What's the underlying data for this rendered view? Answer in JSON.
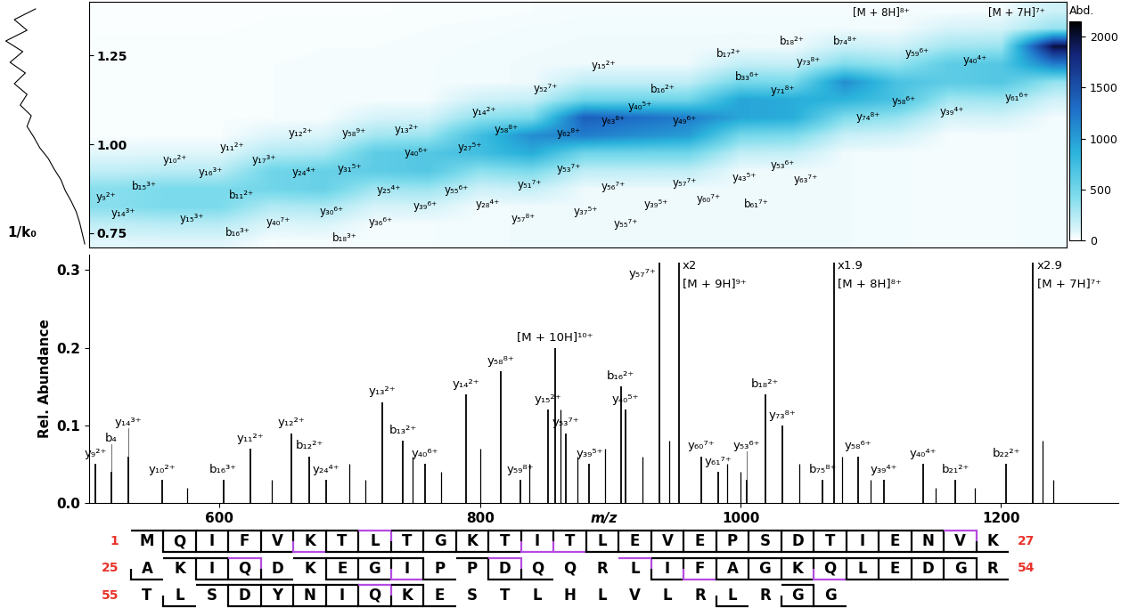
{
  "chart_data": [
    {
      "type": "heatmap",
      "ylabel": "1/k₀",
      "xlim": [
        500,
        1250
      ],
      "ylim": [
        0.71,
        1.4
      ],
      "yticks": [
        {
          "value": 0.75,
          "label": "0.75"
        },
        {
          "value": 1.0,
          "label": "1.00"
        },
        {
          "value": 1.25,
          "label": "1.25"
        }
      ],
      "tick_labels": "y",
      "x_bins": [
        500,
        540,
        580,
        620,
        660,
        700,
        740,
        780,
        820,
        860,
        900,
        940,
        980,
        1020,
        1060,
        1100,
        1140,
        1180,
        1220,
        1260
      ],
      "y_bins": [
        0.7,
        0.75,
        0.8,
        0.85,
        0.9,
        0.95,
        1.0,
        1.05,
        1.1,
        1.15,
        1.2,
        1.25,
        1.3,
        1.35,
        1.4
      ],
      "cells": [
        [
          80,
          90,
          90,
          25,
          28,
          30,
          33,
          38,
          45,
          50,
          50,
          50,
          48,
          45,
          43,
          35,
          30,
          33,
          35
        ],
        [
          200,
          225,
          225,
          100,
          110,
          30,
          33,
          38,
          45,
          50,
          50,
          50,
          48,
          45,
          43,
          35,
          30,
          33,
          35
        ],
        [
          400,
          450,
          450,
          250,
          275,
          120,
          130,
          38,
          45,
          50,
          50,
          50,
          48,
          45,
          43,
          35,
          30,
          33,
          35
        ],
        [
          400,
          450,
          450,
          500,
          550,
          300,
          325,
          150,
          180,
          50,
          50,
          50,
          48,
          45,
          43,
          35,
          30,
          33,
          35
        ],
        [
          200,
          225,
          225,
          500,
          550,
          600,
          650,
          375,
          450,
          200,
          200,
          200,
          48,
          45,
          43,
          35,
          30,
          33,
          35
        ],
        [
          80,
          90,
          90,
          250,
          275,
          600,
          650,
          750,
          900,
          500,
          500,
          500,
          190,
          180,
          43,
          35,
          30,
          33,
          35
        ],
        [
          20,
          23,
          23,
          100,
          110,
          300,
          325,
          750,
          1100,
          1200,
          1100,
          1000,
          475,
          450,
          170,
          140,
          30,
          33,
          35
        ],
        [
          20,
          23,
          23,
          25,
          28,
          120,
          130,
          375,
          450,
          1400,
          1300,
          1200,
          950,
          900,
          425,
          350,
          120,
          130,
          35
        ],
        [
          20,
          23,
          23,
          25,
          28,
          30,
          33,
          150,
          180,
          500,
          500,
          500,
          950,
          900,
          850,
          700,
          300,
          325,
          140
        ],
        [
          20,
          23,
          23,
          25,
          28,
          30,
          33,
          38,
          45,
          200,
          200,
          200,
          475,
          450,
          1100,
          700,
          600,
          650,
          350
        ],
        [
          20,
          23,
          23,
          25,
          28,
          30,
          33,
          38,
          45,
          50,
          50,
          50,
          190,
          180,
          425,
          350,
          600,
          650,
          1200
        ],
        [
          20,
          20,
          20,
          20,
          25,
          25,
          30,
          35,
          40,
          45,
          45,
          45,
          48,
          45,
          170,
          140,
          300,
          325,
          2000
        ],
        [
          15,
          15,
          15,
          20,
          20,
          20,
          25,
          30,
          35,
          40,
          40,
          40,
          40,
          40,
          43,
          35,
          120,
          130,
          350
        ],
        [
          10,
          10,
          10,
          15,
          15,
          15,
          20,
          20,
          25,
          30,
          30,
          30,
          30,
          30,
          30,
          30,
          30,
          35,
          150
        ]
      ],
      "colorbar": {
        "label": "Abd.",
        "range": [
          0,
          2150
        ],
        "ticks": [
          0,
          500,
          1000,
          1500,
          2000
        ]
      },
      "mobilogram": {
        "k0": [
          0.72,
          0.75,
          0.78,
          0.81,
          0.84,
          0.87,
          0.9,
          0.93,
          0.96,
          0.99,
          1.02,
          1.05,
          1.08,
          1.11,
          1.14,
          1.17,
          1.2,
          1.23,
          1.26,
          1.29,
          1.32,
          1.35,
          1.38
        ],
        "values": [
          0.02,
          0.05,
          0.08,
          0.12,
          0.18,
          0.25,
          0.3,
          0.38,
          0.45,
          0.55,
          0.62,
          0.7,
          0.65,
          0.78,
          0.7,
          0.85,
          0.72,
          0.9,
          0.75,
          0.95,
          0.7,
          0.85,
          0.6
        ]
      },
      "annotations": [
        {
          "text": "y₉²⁺",
          "x": 513,
          "y": 0.85
        },
        {
          "text": "b₁₅³⁺",
          "x": 542,
          "y": 0.88
        },
        {
          "text": "y₁₄³⁺",
          "x": 526,
          "y": 0.805
        },
        {
          "text": "y₁₀²⁺",
          "x": 566,
          "y": 0.955
        },
        {
          "text": "y₁₆³⁺",
          "x": 593,
          "y": 0.92
        },
        {
          "text": "y₁₁²⁺",
          "x": 610,
          "y": 0.99
        },
        {
          "text": "y₁₇³⁺",
          "x": 634,
          "y": 0.955
        },
        {
          "text": "y₁₂²⁺",
          "x": 662,
          "y": 1.03
        },
        {
          "text": "y₅₈⁹⁺",
          "x": 703,
          "y": 1.03
        },
        {
          "text": "y₁₃²⁺",
          "x": 744,
          "y": 1.04
        },
        {
          "text": "y₄₀⁶⁺",
          "x": 751,
          "y": 0.975
        },
        {
          "text": "y₂₇⁵⁺",
          "x": 792,
          "y": 0.99
        },
        {
          "text": "y₂₄⁴⁺",
          "x": 665,
          "y": 0.92
        },
        {
          "text": "y₃₁⁵⁺",
          "x": 700,
          "y": 0.93
        },
        {
          "text": "y₂₅⁴⁺",
          "x": 730,
          "y": 0.87
        },
        {
          "text": "b₁₁²⁺",
          "x": 617,
          "y": 0.855
        },
        {
          "text": "y₁₅³⁺",
          "x": 579,
          "y": 0.79
        },
        {
          "text": "b₁₆³⁺",
          "x": 614,
          "y": 0.75
        },
        {
          "text": "y₄₀⁷⁺",
          "x": 645,
          "y": 0.78
        },
        {
          "text": "y₃₀⁶⁺",
          "x": 686,
          "y": 0.81
        },
        {
          "text": "y₃₆⁶⁺",
          "x": 724,
          "y": 0.78
        },
        {
          "text": "b₁₈³⁺",
          "x": 696,
          "y": 0.735
        },
        {
          "text": "y₃₉⁶⁺",
          "x": 758,
          "y": 0.825
        },
        {
          "text": "y₅₅⁶⁺",
          "x": 782,
          "y": 0.87
        },
        {
          "text": "y₂₈⁴⁺",
          "x": 806,
          "y": 0.83
        },
        {
          "text": "y₅₇⁸⁺",
          "x": 833,
          "y": 0.79
        },
        {
          "text": "y₃₇⁵⁺",
          "x": 881,
          "y": 0.81
        },
        {
          "text": "y₅₅⁷⁺",
          "x": 912,
          "y": 0.775
        },
        {
          "text": "y₁₄²⁺",
          "x": 803,
          "y": 1.09
        },
        {
          "text": "y₅₈⁸⁺",
          "x": 820,
          "y": 1.04
        },
        {
          "text": "y₅₂⁷⁺",
          "x": 850,
          "y": 1.155
        },
        {
          "text": "y₁₅²⁺",
          "x": 895,
          "y": 1.22
        },
        {
          "text": "y₆₂⁸⁺",
          "x": 868,
          "y": 1.03
        },
        {
          "text": "y₆₃⁸⁺",
          "x": 902,
          "y": 1.065
        },
        {
          "text": "y₅₃⁷⁺",
          "x": 868,
          "y": 0.93
        },
        {
          "text": "y₅₁⁷⁺",
          "x": 838,
          "y": 0.885
        },
        {
          "text": "y₅₆⁷⁺",
          "x": 902,
          "y": 0.88
        },
        {
          "text": "y₃₉⁵⁺",
          "x": 935,
          "y": 0.83
        },
        {
          "text": "y₅₇⁷⁺",
          "x": 957,
          "y": 0.89
        },
        {
          "text": "y₆₀⁷⁺",
          "x": 975,
          "y": 0.845
        },
        {
          "text": "y₄₃⁵⁺",
          "x": 1003,
          "y": 0.905
        },
        {
          "text": "y₅₃⁶⁺",
          "x": 1032,
          "y": 0.94
        },
        {
          "text": "y₆₃⁷⁺",
          "x": 1050,
          "y": 0.9
        },
        {
          "text": "b₆₁⁷⁺",
          "x": 1012,
          "y": 0.83
        },
        {
          "text": "y₄₀⁵⁺",
          "x": 923,
          "y": 1.105
        },
        {
          "text": "y₄₉⁶⁺",
          "x": 957,
          "y": 1.065
        },
        {
          "text": "b₁₆²⁺",
          "x": 940,
          "y": 1.155
        },
        {
          "text": "b₁₇²⁺",
          "x": 991,
          "y": 1.255
        },
        {
          "text": "b₃₃⁶⁺",
          "x": 1005,
          "y": 1.19
        },
        {
          "text": "y₇₁⁸⁺",
          "x": 1032,
          "y": 1.15
        },
        {
          "text": "b₁₈²⁺",
          "x": 1039,
          "y": 1.29
        },
        {
          "text": "y₇₃⁸⁺",
          "x": 1052,
          "y": 1.23
        },
        {
          "text": "b₇₄⁸⁺",
          "x": 1080,
          "y": 1.29
        },
        {
          "text": "[M + 8H]⁸⁺",
          "x": 1108,
          "y": 1.37
        },
        {
          "text": "[M + 7H]⁷⁺",
          "x": 1212,
          "y": 1.37
        },
        {
          "text": "y₅₉⁶⁺",
          "x": 1135,
          "y": 1.255
        },
        {
          "text": "y₄₀⁴⁺",
          "x": 1180,
          "y": 1.235
        },
        {
          "text": "y₇₄⁸⁺",
          "x": 1098,
          "y": 1.075
        },
        {
          "text": "y₅₈⁶⁺",
          "x": 1125,
          "y": 1.12
        },
        {
          "text": "y₃₉⁴⁺",
          "x": 1162,
          "y": 1.09
        },
        {
          "text": "y₆₁⁶⁺",
          "x": 1212,
          "y": 1.13
        }
      ]
    },
    {
      "type": "spectrum",
      "xlabel": "m/z",
      "ylabel": "Rel. Abundance",
      "color": "#000000",
      "xlim": [
        500,
        1290
      ],
      "ylim": [
        0,
        0.32
      ],
      "xticks": [
        600,
        800,
        1000,
        1200
      ],
      "yticks": [
        {
          "value": 0.0,
          "label": "0.0"
        },
        {
          "value": 0.1,
          "label": "0.1"
        },
        {
          "value": 0.2,
          "label": "0.2"
        },
        {
          "value": 0.3,
          "label": "0.3"
        }
      ],
      "peaks": [
        {
          "label": "y₉²⁺",
          "mz": 505,
          "value": 0.05
        },
        {
          "label": "b₄",
          "mz": 517,
          "value": 0.04
        },
        {
          "label": "y₁₄³⁺",
          "mz": 530,
          "value": 0.06
        },
        {
          "label": "y₁₀²⁺",
          "mz": 556,
          "value": 0.03
        },
        {
          "label": "b₁₆³⁺",
          "mz": 603,
          "value": 0.03
        },
        {
          "label": "y₁₁²⁺",
          "mz": 624,
          "value": 0.07
        },
        {
          "label": "y₁₂²⁺",
          "mz": 655,
          "value": 0.09
        },
        {
          "label": "b₁₂²⁺",
          "mz": 669,
          "value": 0.06
        },
        {
          "label": "y₂₄⁴⁺",
          "mz": 682,
          "value": 0.03
        },
        {
          "label": "y₁₃²⁺",
          "mz": 725,
          "value": 0.13
        },
        {
          "label": "b₁₃²⁺",
          "mz": 741,
          "value": 0.08
        },
        {
          "label": "y₄₀⁶⁺",
          "mz": 758,
          "value": 0.05
        },
        {
          "label": "y₁₄²⁺",
          "mz": 789,
          "value": 0.14
        },
        {
          "label": "y₅₈⁸⁺",
          "mz": 816,
          "value": 0.17
        },
        {
          "label": "y₅₉⁸⁺",
          "mz": 831,
          "value": 0.03
        },
        {
          "label": "y₁₅²⁺",
          "mz": 852,
          "value": 0.12
        },
        {
          "label": "[M + 10H]¹⁰⁺",
          "mz": 857.5,
          "value": 0.2
        },
        {
          "label": "y₅₃⁷⁺",
          "mz": 866,
          "value": 0.09
        },
        {
          "label": "y₃₉⁵⁺",
          "mz": 884,
          "value": 0.05
        },
        {
          "label": "b₁₆²⁺",
          "mz": 908,
          "value": 0.15
        },
        {
          "label": "y₄₀⁵⁺",
          "mz": 912,
          "value": 0.12
        },
        {
          "label": "y₅₇⁷⁺",
          "mz": 938,
          "value": 0.31
        },
        {
          "label": "[M + 9H]⁹⁺",
          "mz": 952.7,
          "value": 0.31,
          "scale_label": "x2"
        },
        {
          "label": "y₆₀⁷⁺",
          "mz": 970,
          "value": 0.06
        },
        {
          "label": "y₆₁⁷⁺",
          "mz": 983,
          "value": 0.04
        },
        {
          "label": "y₅₃⁶⁺",
          "mz": 1005,
          "value": 0.03
        },
        {
          "label": "b₁₈²⁺",
          "mz": 1019,
          "value": 0.14
        },
        {
          "label": "y₇₃⁸⁺",
          "mz": 1032,
          "value": 0.1
        },
        {
          "label": "b₇₅⁸⁺",
          "mz": 1063,
          "value": 0.03
        },
        {
          "label": "[M + 8H]⁸⁺",
          "mz": 1071.6,
          "value": 0.31,
          "scale_label": "x1.9"
        },
        {
          "label": "y₅₈⁶⁺",
          "mz": 1090,
          "value": 0.06
        },
        {
          "label": "y₃₉⁴⁺",
          "mz": 1110,
          "value": 0.03
        },
        {
          "label": "y₄₀⁴⁺",
          "mz": 1140,
          "value": 0.05
        },
        {
          "label": "b₂₁²⁺",
          "mz": 1165,
          "value": 0.03
        },
        {
          "label": "b₂₂²⁺",
          "mz": 1204,
          "value": 0.05
        },
        {
          "label": "[M + 7H]⁷⁺",
          "mz": 1224.6,
          "value": 0.31,
          "scale_label": "x2.9"
        }
      ],
      "unlabeled_peaks": {
        "mz": [
          575,
          640,
          700,
          712,
          748,
          770,
          800,
          838,
          862,
          875,
          896,
          925,
          945,
          990,
          1000,
          1045,
          1078,
          1100,
          1150,
          1180,
          1232,
          1240
        ],
        "values": [
          0.02,
          0.03,
          0.05,
          0.03,
          0.06,
          0.04,
          0.07,
          0.05,
          0.12,
          0.06,
          0.07,
          0.06,
          0.08,
          0.05,
          0.04,
          0.05,
          0.06,
          0.03,
          0.02,
          0.02,
          0.08,
          0.03
        ]
      }
    }
  ],
  "sequence": {
    "rows": [
      {
        "start": 1,
        "end": 27,
        "residues": "MQIFVKTLTGKTITLEVEPSDTIENVK",
        "b_after": [
          1,
          2,
          3,
          4,
          5,
          6,
          7,
          8,
          9,
          10,
          11,
          12,
          13,
          14,
          15,
          16,
          17,
          18,
          19,
          20,
          21,
          22,
          23,
          24,
          25,
          26
        ],
        "y_after": [
          1,
          2,
          3,
          4,
          5,
          6,
          7,
          8,
          9,
          10,
          11,
          12,
          13,
          14,
          15,
          16,
          17,
          18,
          19,
          20,
          21,
          22,
          23,
          24,
          25,
          26
        ],
        "b_after_highlight": [
          8,
          26
        ],
        "y_after_highlight": [
          5,
          12,
          13
        ]
      },
      {
        "start": 25,
        "end": 54,
        "residues": "AKIQDKEGIPPDQQRLIFAGKQLEDGR",
        "b_after": [
          2,
          3,
          4,
          6,
          7,
          8,
          9,
          11,
          12,
          16,
          17,
          18,
          19,
          20,
          21,
          22,
          23,
          24,
          25,
          26
        ],
        "y_after": [
          0,
          2,
          3,
          4,
          6,
          7,
          8,
          9,
          11,
          12,
          16,
          17,
          18,
          19,
          20,
          21,
          22,
          23,
          24,
          25,
          26
        ],
        "b_after_highlight": [
          4,
          12,
          16
        ],
        "y_after_highlight": [
          8,
          17,
          21
        ]
      },
      {
        "start": 55,
        "residues": "TLSDYNIQKESTLHLVLRLRGG",
        "b_after": [
          3,
          4,
          5,
          6,
          7,
          8,
          9,
          21
        ],
        "y_after": [
          1,
          3,
          4,
          5,
          6,
          7,
          8,
          9,
          18,
          20,
          21
        ],
        "b_after_highlight": [
          8
        ]
      }
    ]
  }
}
